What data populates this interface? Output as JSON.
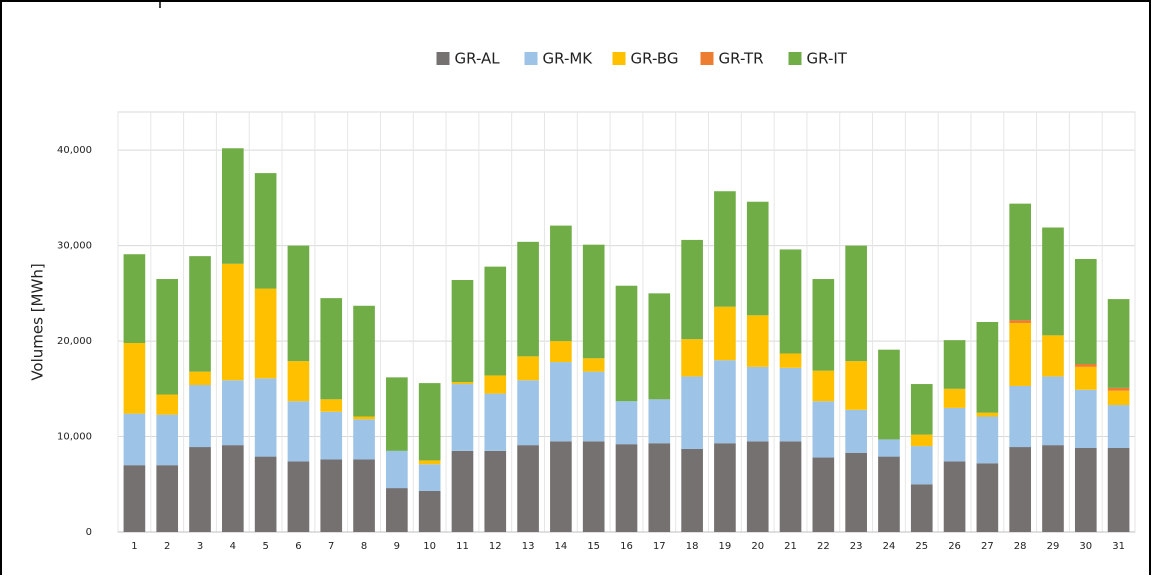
{
  "chart_data": {
    "type": "stacked-bar",
    "y_label": "Volumes [MWh]",
    "categories": [
      "1",
      "2",
      "3",
      "4",
      "5",
      "6",
      "7",
      "8",
      "9",
      "10",
      "11",
      "12",
      "13",
      "14",
      "15",
      "16",
      "17",
      "18",
      "19",
      "20",
      "21",
      "22",
      "23",
      "24",
      "25",
      "26",
      "27",
      "28",
      "29",
      "30",
      "31"
    ],
    "series": [
      {
        "name": "GR-AL",
        "color": "#757171",
        "values": [
          7000,
          7000,
          8900,
          9100,
          7900,
          7400,
          7600,
          7600,
          4600,
          4300,
          8500,
          8500,
          9100,
          9500,
          9500,
          9200,
          9300,
          8700,
          9300,
          9500,
          9500,
          7800,
          8300,
          7900,
          5000,
          7400,
          7200,
          8900,
          9100,
          8800,
          8800
        ]
      },
      {
        "name": "GR-MK",
        "color": "#9dc3e6",
        "values": [
          5400,
          5300,
          6500,
          6800,
          8200,
          6300,
          5000,
          4200,
          3900,
          2800,
          7000,
          6000,
          6800,
          8300,
          7300,
          4500,
          4600,
          7600,
          8700,
          7800,
          7700,
          5900,
          4500,
          1800,
          4000,
          5600,
          4900,
          6400,
          7200,
          6100,
          4500
        ]
      },
      {
        "name": "GR-BG",
        "color": "#ffc000",
        "values": [
          7400,
          2100,
          1400,
          12200,
          9400,
          4200,
          1300,
          300,
          0,
          400,
          200,
          1900,
          2500,
          2200,
          1400,
          0,
          0,
          3900,
          5600,
          5400,
          1500,
          3200,
          5100,
          0,
          1200,
          2000,
          400,
          6600,
          4300,
          2400,
          1500
        ]
      },
      {
        "name": "GR-TR",
        "color": "#ed7d31",
        "values": [
          0,
          0,
          0,
          0,
          0,
          0,
          0,
          0,
          0,
          0,
          0,
          0,
          0,
          0,
          0,
          0,
          0,
          0,
          0,
          0,
          0,
          0,
          0,
          0,
          0,
          0,
          0,
          300,
          0,
          300,
          300
        ]
      },
      {
        "name": "GR-IT",
        "color": "#70ad47",
        "values": [
          9300,
          12100,
          12100,
          12100,
          12100,
          12100,
          10600,
          11600,
          7700,
          8100,
          10700,
          11400,
          12000,
          12100,
          11900,
          12100,
          11100,
          10400,
          12100,
          11900,
          10900,
          9600,
          12100,
          9400,
          5300,
          5100,
          9500,
          12200,
          11300,
          11000,
          9300
        ]
      }
    ],
    "ylim": [
      0,
      44000
    ],
    "yticks": [
      0,
      {
        "value": 10000,
        "label": "10,000"
      },
      {
        "value": 20000,
        "label": "20,000"
      },
      {
        "value": 30000,
        "label": "30,000"
      },
      {
        "value": 40000,
        "label": "40,000"
      }
    ],
    "grid": true,
    "legend": "top"
  }
}
